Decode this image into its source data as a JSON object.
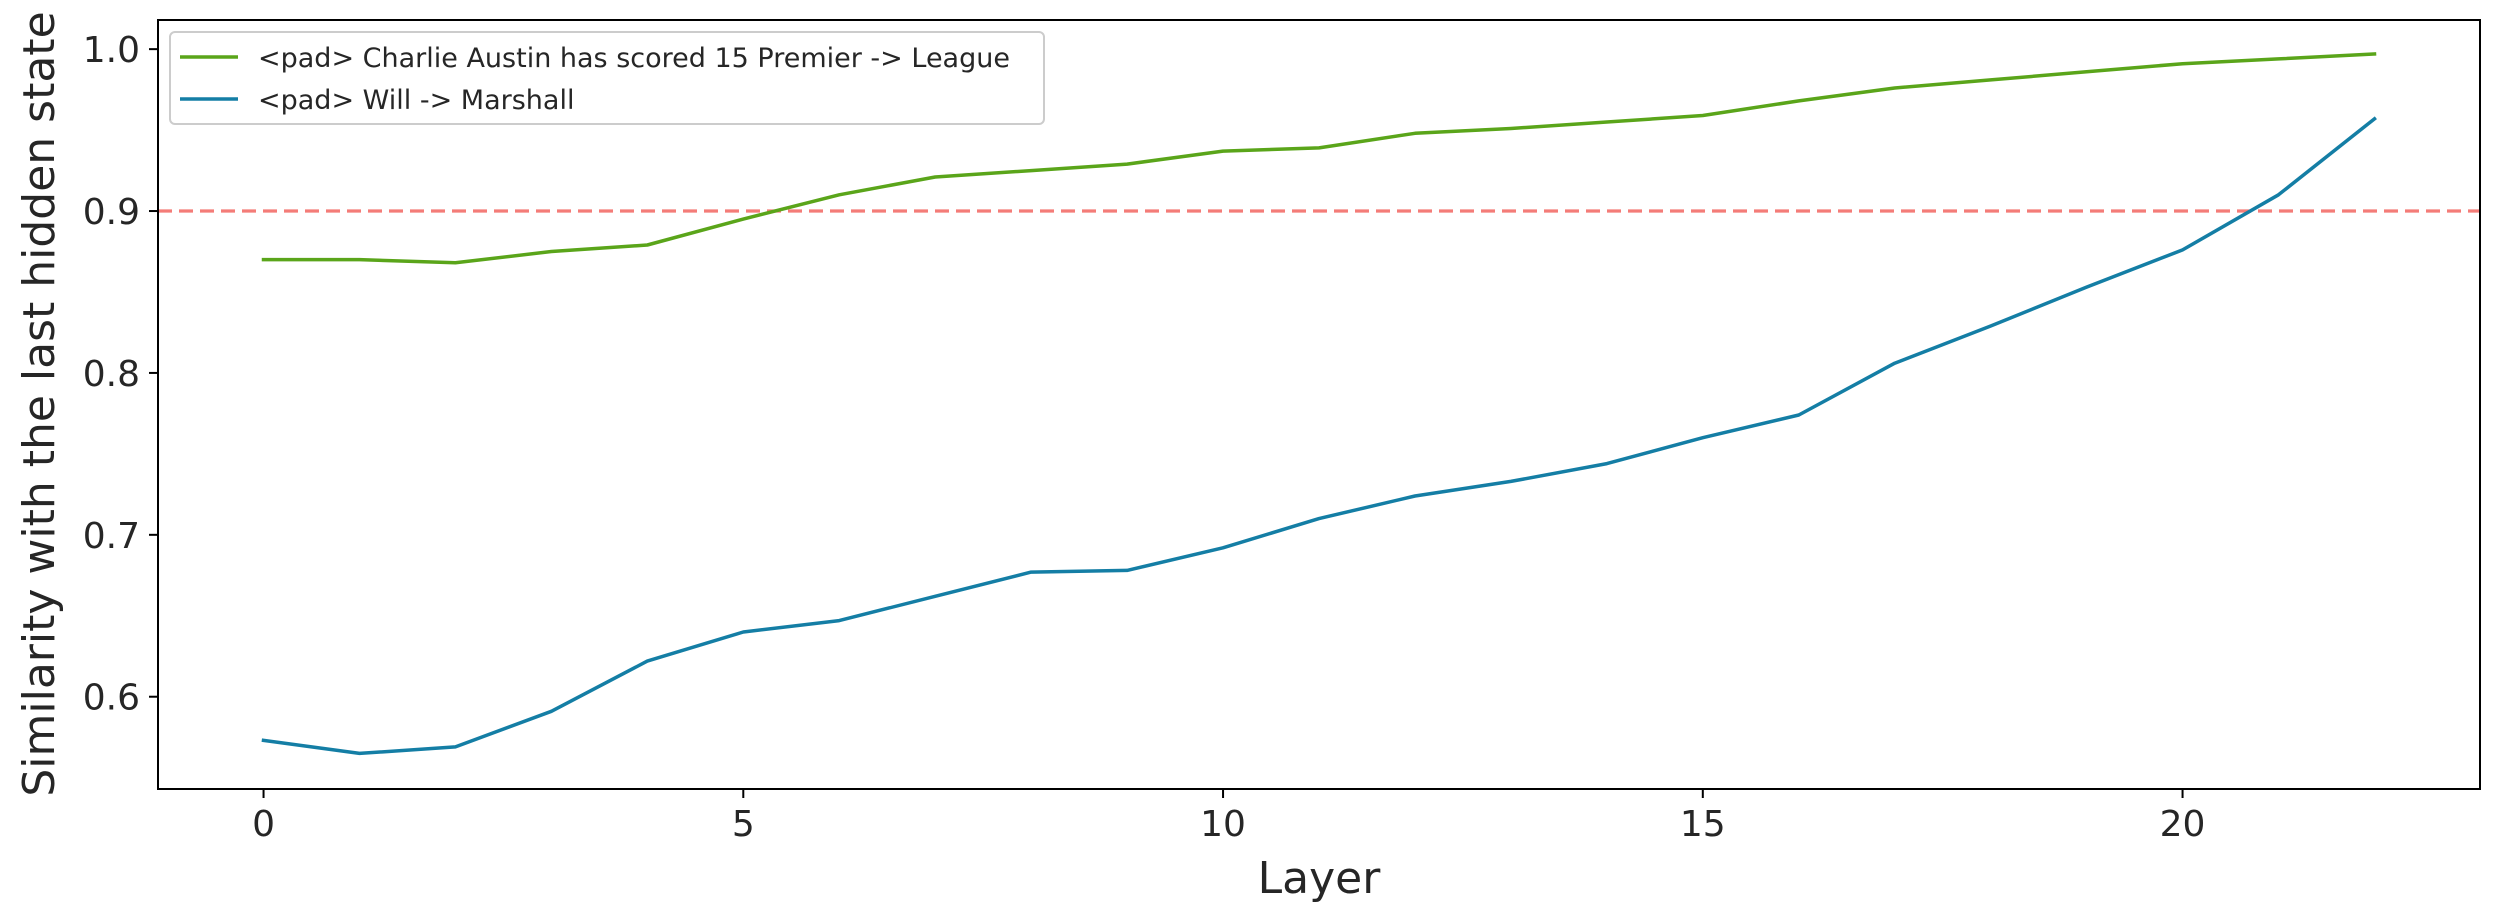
{
  "chart_data": {
    "type": "line",
    "xlabel": "Layer",
    "ylabel": "Similarity with the last hidden state",
    "xlim": [
      -1.1,
      23.1
    ],
    "ylim": [
      0.543,
      1.018
    ],
    "xticks": [
      0,
      5,
      10,
      15,
      20
    ],
    "yticks": [
      0.6,
      0.7,
      0.8,
      0.9,
      1.0
    ],
    "ytick_labels": [
      "0.6",
      "0.7",
      "0.8",
      "0.9",
      "1.0"
    ],
    "grid": false,
    "legend_position": "top-left",
    "reference_line": {
      "y": 0.9,
      "style": "dashed",
      "color": "#f47c78"
    },
    "x": [
      0,
      1,
      2,
      3,
      4,
      5,
      6,
      7,
      8,
      9,
      10,
      11,
      12,
      13,
      14,
      15,
      16,
      17,
      18,
      19,
      20,
      21,
      22
    ],
    "series": [
      {
        "name": "<pad> Charlie Austin has scored 15 Premier -> League",
        "color": "#5aa51a",
        "values": [
          0.87,
          0.87,
          0.868,
          0.875,
          0.879,
          0.895,
          0.91,
          0.921,
          0.925,
          0.929,
          0.937,
          0.939,
          0.948,
          0.951,
          0.955,
          0.959,
          0.968,
          0.976,
          0.981,
          0.986,
          0.991,
          0.994,
          0.997
        ]
      },
      {
        "name": "<pad> Will -> Marshall",
        "color": "#147ea5",
        "values": [
          0.573,
          0.565,
          0.569,
          0.591,
          0.622,
          0.64,
          0.647,
          0.662,
          0.677,
          0.678,
          0.692,
          0.71,
          0.724,
          0.733,
          0.744,
          0.76,
          0.774,
          0.806,
          0.829,
          0.853,
          0.876,
          0.91,
          0.957
        ]
      }
    ]
  }
}
